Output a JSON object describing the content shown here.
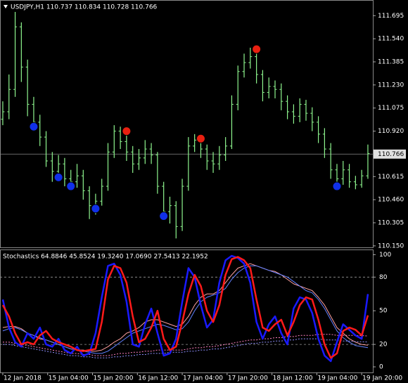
{
  "chart_data": [
    {
      "type": "ohlc",
      "title": "USDJPY,H1  110.737 110.834 110.728 110.766",
      "color": "#8ef58e",
      "xlim": [
        -0.45,
        59.8
      ],
      "ylim": [
        110.14,
        111.8
      ],
      "yticks": [
        {
          "value": 110.15,
          "label": "110.150"
        },
        110.305,
        {
          "value": 110.46,
          "label": "110.460"
        },
        110.615,
        {
          "value": 110.92,
          "label": "110.920"
        },
        111.075,
        {
          "value": 111.23,
          "label": "111.230"
        },
        111.385,
        {
          "value": 111.54,
          "label": "111.540"
        },
        111.695
      ],
      "last_price": 110.766,
      "open": [
        111.0,
        111.05,
        111.2,
        111.62,
        111.35,
        111.1,
        110.98,
        110.88,
        110.72,
        110.65,
        110.7,
        110.6,
        110.58,
        110.62,
        110.52,
        110.42,
        110.45,
        110.55,
        110.78,
        110.92,
        110.85,
        110.78,
        110.7,
        110.74,
        110.8,
        110.76,
        110.55,
        110.38,
        110.42,
        110.28,
        110.55,
        110.82,
        110.86,
        110.8,
        110.72,
        110.7,
        110.76,
        110.82,
        111.1,
        111.32,
        111.38,
        111.42,
        111.3,
        111.18,
        111.22,
        111.2,
        111.12,
        111.05,
        111.02,
        111.1,
        111.04,
        110.98,
        110.9,
        110.8,
        110.66,
        110.6,
        110.66,
        110.58,
        110.56,
        110.62
      ],
      "high": [
        111.12,
        111.3,
        111.72,
        111.65,
        111.4,
        111.15,
        111.03,
        110.92,
        110.78,
        110.76,
        110.74,
        110.66,
        110.7,
        110.66,
        110.55,
        110.5,
        110.6,
        110.84,
        110.96,
        110.95,
        110.9,
        110.82,
        110.8,
        110.86,
        110.84,
        110.78,
        110.58,
        110.48,
        110.45,
        110.6,
        110.88,
        110.9,
        110.89,
        110.83,
        110.78,
        110.82,
        110.88,
        111.16,
        111.36,
        111.44,
        111.48,
        111.45,
        111.33,
        111.28,
        111.26,
        111.24,
        111.16,
        111.1,
        111.14,
        111.13,
        111.08,
        111.02,
        110.94,
        110.84,
        110.7,
        110.72,
        110.7,
        110.62,
        110.66,
        110.83
      ],
      "low": [
        110.96,
        111.0,
        111.15,
        111.25,
        111.02,
        110.92,
        110.82,
        110.68,
        110.58,
        110.6,
        110.55,
        110.52,
        110.54,
        110.46,
        110.33,
        110.36,
        110.42,
        110.52,
        110.74,
        110.8,
        110.72,
        110.64,
        110.66,
        110.7,
        110.7,
        110.5,
        110.33,
        110.3,
        110.2,
        110.25,
        110.52,
        110.78,
        110.74,
        110.66,
        110.64,
        110.66,
        110.72,
        110.8,
        111.06,
        111.28,
        111.34,
        111.24,
        111.12,
        111.14,
        111.14,
        111.06,
        111.0,
        110.97,
        110.98,
        110.99,
        110.92,
        110.84,
        110.74,
        110.6,
        110.54,
        110.56,
        110.54,
        110.53,
        110.54,
        110.6
      ],
      "close": [
        111.05,
        111.2,
        111.62,
        111.35,
        111.1,
        110.98,
        110.88,
        110.72,
        110.65,
        110.7,
        110.6,
        110.58,
        110.62,
        110.52,
        110.42,
        110.45,
        110.55,
        110.78,
        110.92,
        110.85,
        110.78,
        110.7,
        110.74,
        110.8,
        110.76,
        110.55,
        110.38,
        110.42,
        110.28,
        110.55,
        110.82,
        110.86,
        110.8,
        110.72,
        110.7,
        110.76,
        110.82,
        111.1,
        111.32,
        111.38,
        111.42,
        111.3,
        111.18,
        111.22,
        111.2,
        111.12,
        111.05,
        111.02,
        111.1,
        111.04,
        110.98,
        110.9,
        110.8,
        110.66,
        110.6,
        110.66,
        110.58,
        110.56,
        110.62,
        110.77
      ],
      "markers": [
        {
          "x": 5,
          "value": 110.95,
          "color": "#1030e8"
        },
        {
          "x": 9,
          "value": 110.61,
          "color": "#1030e8"
        },
        {
          "x": 11,
          "value": 110.55,
          "color": "#1030e8"
        },
        {
          "x": 15,
          "value": 110.4,
          "color": "#1030e8"
        },
        {
          "x": 20,
          "value": 110.92,
          "color": "#e82010"
        },
        {
          "x": 26,
          "value": 110.35,
          "color": "#1030e8"
        },
        {
          "x": 32,
          "value": 110.87,
          "color": "#e82010"
        },
        {
          "x": 41,
          "value": 111.47,
          "color": "#e82010"
        },
        {
          "x": 54,
          "value": 110.55,
          "color": "#1030e8"
        }
      ]
    },
    {
      "type": "line",
      "title": "Stochastics 64.8846 45.8524 19.3240 17.0690 27.5413 22.1952",
      "xlim": [
        -0.45,
        59.8
      ],
      "ylim": [
        -5,
        104
      ],
      "yticks": [
        0,
        20,
        50,
        80,
        100
      ],
      "levels": [
        20,
        80
      ],
      "xticks": [
        {
          "value": 0,
          "label": "12 Jan 2018"
        },
        {
          "value": 7.25,
          "label": "15 Jan 04:00"
        },
        {
          "value": 14.5,
          "label": "15 Jan 20:00"
        },
        {
          "value": 21.75,
          "label": "16 Jan 12:00"
        },
        {
          "value": 29,
          "label": "17 Jan 04:00"
        },
        {
          "value": 36.25,
          "label": "17 Jan 20:00"
        },
        {
          "value": 43.5,
          "label": "18 Jan 12:00"
        },
        {
          "value": 50.75,
          "label": "19 Jan 04:00"
        },
        {
          "value": 58,
          "label": "19 Jan 20:00"
        }
      ],
      "series": [
        {
          "color": "#ffa0a0",
          "style": "thin",
          "values": [
            35,
            36,
            36,
            34,
            30,
            28,
            25,
            24,
            22,
            20,
            18,
            16,
            15,
            15,
            14,
            14,
            15,
            18,
            22,
            25,
            30,
            32,
            35,
            40,
            42,
            42,
            40,
            38,
            36,
            38,
            45,
            55,
            62,
            65,
            65,
            68,
            75,
            82,
            88,
            90,
            92,
            90,
            88,
            86,
            85,
            82,
            78,
            74,
            72,
            70,
            68,
            62,
            55,
            45,
            35,
            30,
            25,
            22,
            20,
            19.324
          ]
        },
        {
          "color": "#6080ff",
          "style": "thin",
          "values": [
            32,
            34,
            35,
            33,
            30,
            28,
            26,
            24,
            22,
            20,
            18,
            16,
            15,
            14,
            13,
            12,
            12,
            14,
            18,
            22,
            26,
            30,
            32,
            34,
            36,
            38,
            37,
            35,
            33,
            34,
            40,
            50,
            58,
            62,
            64,
            66,
            70,
            78,
            84,
            88,
            90,
            90,
            88,
            86,
            84,
            82,
            80,
            76,
            72,
            68,
            66,
            60,
            52,
            42,
            32,
            26,
            22,
            19,
            18,
            17.069
          ]
        },
        {
          "color": "#ff80c0",
          "style": "dashed",
          "values": [
            22,
            22,
            21,
            20,
            19,
            18,
            17,
            16,
            15,
            14,
            13,
            12,
            12,
            11,
            11,
            10,
            10,
            10,
            11,
            12,
            12,
            13,
            13,
            14,
            14,
            15,
            15,
            15,
            15,
            15,
            16,
            17,
            17,
            18,
            18,
            19,
            20,
            21,
            22,
            23,
            24,
            24,
            25,
            25,
            26,
            26,
            27,
            27,
            28,
            28,
            28,
            29,
            29,
            29,
            28,
            28,
            28,
            28,
            27.8,
            27.5413
          ]
        },
        {
          "color": "#9090ff",
          "style": "dashed",
          "values": [
            20,
            20,
            19,
            18,
            17,
            16,
            15,
            14,
            13,
            12,
            11,
            10,
            10,
            9,
            9,
            8,
            8,
            8,
            9,
            9,
            10,
            10,
            11,
            11,
            12,
            12,
            12,
            13,
            13,
            13,
            14,
            14,
            15,
            15,
            16,
            16,
            17,
            18,
            19,
            20,
            21,
            21,
            22,
            22,
            23,
            23,
            24,
            24,
            25,
            25,
            25,
            25,
            24,
            24,
            24,
            23,
            23,
            22.5,
            22.3,
            22.1952
          ]
        },
        {
          "color": "#1a1aff",
          "style": "thick",
          "values": [
            60,
            35,
            22,
            18,
            30,
            25,
            35,
            20,
            18,
            25,
            15,
            12,
            18,
            10,
            12,
            30,
            62,
            90,
            92,
            82,
            58,
            20,
            18,
            38,
            52,
            30,
            10,
            12,
            25,
            58,
            88,
            80,
            55,
            35,
            42,
            75,
            95,
            99,
            97,
            92,
            75,
            40,
            25,
            38,
            45,
            30,
            20,
            52,
            62,
            60,
            48,
            25,
            10,
            5,
            22,
            38,
            33,
            28,
            25,
            64.8846
          ]
        },
        {
          "color": "#ff1a1a",
          "style": "thick",
          "values": [
            55,
            45,
            30,
            20,
            22,
            20,
            28,
            32,
            25,
            22,
            20,
            18,
            15,
            14,
            15,
            16,
            40,
            78,
            90,
            88,
            75,
            45,
            22,
            25,
            35,
            50,
            25,
            15,
            18,
            40,
            65,
            82,
            72,
            50,
            40,
            55,
            82,
            96,
            98,
            95,
            88,
            60,
            35,
            32,
            38,
            42,
            28,
            40,
            55,
            62,
            60,
            42,
            20,
            8,
            12,
            32,
            35,
            33,
            28,
            45.8524
          ]
        }
      ]
    }
  ]
}
